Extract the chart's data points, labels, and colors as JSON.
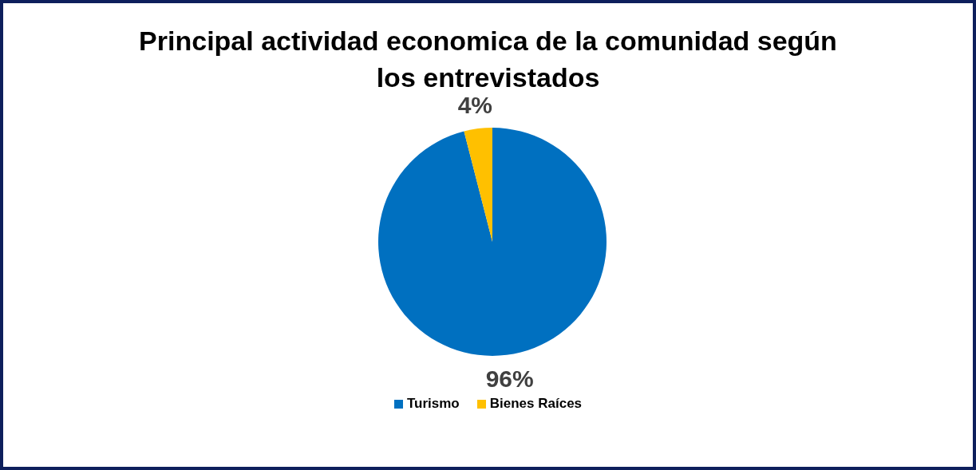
{
  "chart_data": {
    "type": "pie",
    "title": "Principal actividad economica de la comunidad según los entrevistados",
    "categories": [
      "Turismo",
      "Bienes Raíces"
    ],
    "values": [
      96,
      4
    ],
    "colors": [
      "#0070c0",
      "#ffc000"
    ],
    "value_labels": [
      "96%",
      "4%"
    ],
    "legend": "bottom"
  }
}
